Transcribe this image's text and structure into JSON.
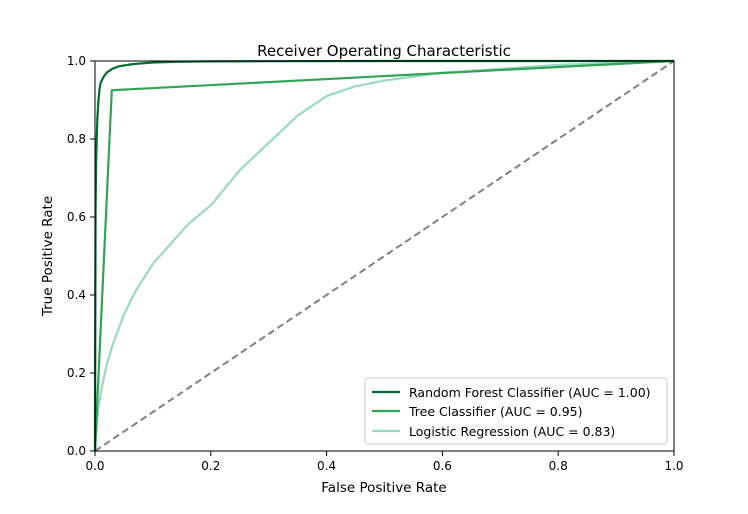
{
  "chart_data": {
    "type": "line",
    "title": "Receiver Operating Characteristic",
    "xlabel": "False Positive Rate",
    "ylabel": "True Positive Rate",
    "xlim": [
      0,
      1
    ],
    "ylim": [
      0,
      1
    ],
    "xticks": [
      0.0,
      0.2,
      0.4,
      0.6,
      0.8,
      1.0
    ],
    "yticks": [
      0.0,
      0.2,
      0.4,
      0.6,
      0.8,
      1.0
    ],
    "xtick_labels": [
      "0.0",
      "0.2",
      "0.4",
      "0.6",
      "0.8",
      "1.0"
    ],
    "ytick_labels": [
      "0.0",
      "0.2",
      "0.4",
      "0.6",
      "0.8",
      "1.0"
    ],
    "grid": false,
    "legend_position": "lower-right",
    "series": [
      {
        "name": "Random Forest Classifier (AUC = 1.00)",
        "color": "#006d2c",
        "x": [
          0,
          0.001,
          0.002,
          0.004,
          0.006,
          0.008,
          0.01,
          0.015,
          0.02,
          0.03,
          0.04,
          0.06,
          0.08,
          0.1,
          0.14,
          0.2,
          0.3,
          0.5,
          0.7,
          1.0
        ],
        "y": [
          0,
          0.62,
          0.75,
          0.85,
          0.9,
          0.93,
          0.945,
          0.96,
          0.97,
          0.98,
          0.986,
          0.991,
          0.994,
          0.996,
          0.998,
          0.999,
          0.9995,
          1.0,
          1.0,
          1.0
        ]
      },
      {
        "name": "Tree Classifier (AUC = 0.95)",
        "color": "#31a354",
        "x": [
          0,
          0.029,
          1.0
        ],
        "y": [
          0,
          0.925,
          1.0
        ]
      },
      {
        "name": "Logistic Regression (AUC = 0.83)",
        "color": "#99d8c9",
        "x": [
          0,
          0.005,
          0.01,
          0.02,
          0.03,
          0.05,
          0.07,
          0.1,
          0.13,
          0.16,
          0.2,
          0.25,
          0.3,
          0.35,
          0.4,
          0.45,
          0.5,
          0.55,
          0.6,
          0.7,
          0.8,
          0.9,
          1.0
        ],
        "y": [
          0,
          0.1,
          0.15,
          0.22,
          0.27,
          0.35,
          0.41,
          0.48,
          0.53,
          0.58,
          0.63,
          0.72,
          0.79,
          0.86,
          0.91,
          0.935,
          0.95,
          0.96,
          0.97,
          0.98,
          0.99,
          0.995,
          1.0
        ]
      },
      {
        "color": "#808080",
        "dashed": true,
        "x": [
          0,
          1
        ],
        "y": [
          0,
          1
        ]
      }
    ]
  }
}
